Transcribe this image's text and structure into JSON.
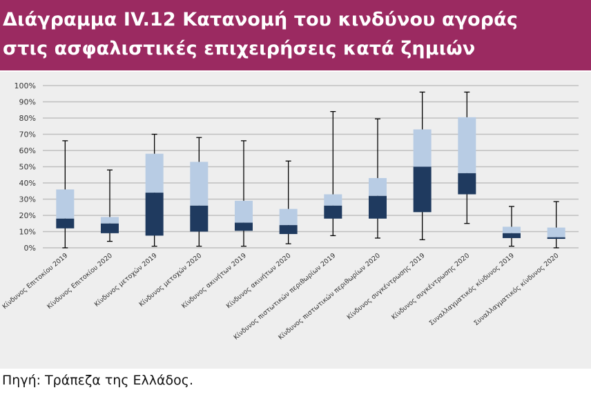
{
  "header": {
    "title_line1": "Διάγραμμα IV.12 Κατανομή του κινδύνου αγοράς",
    "title_line2": "στις ασφαλιστικές επιχειρήσεις κατά ζημιών"
  },
  "footer": {
    "source": "Πηγή: Τράπεζα της Ελλάδος."
  },
  "colors": {
    "header_bg": "#9b2a61",
    "upper_box": "#b8cce4",
    "lower_box": "#1f3a5f",
    "whisker": "#000000",
    "grid": "#bfbfbf",
    "plot_bg": "#eeeeee"
  },
  "chart_data": {
    "type": "box",
    "ylim": [
      0,
      100
    ],
    "y_ticks": [
      "0%",
      "10%",
      "20%",
      "30%",
      "40%",
      "50%",
      "60%",
      "70%",
      "80%",
      "90%",
      "100%"
    ],
    "grid": true,
    "legend": "none",
    "categories": [
      "Κίνδυνος Επιτοκίου 2019",
      "Κίνδυνος Επιτοκίου 2020",
      "Κίνδυνος μετοχών 2019",
      "Κίνδυνος μετοχών 2020",
      "Κίνδυνος ακινήτων 2019",
      "Κίνδυνος ακινήτων 2020",
      "Κίνδυνος πιστωτικών περιθωρίων 2019",
      "Κίνδυνος πιστωτικών περιθωρίων 2020",
      "Κίνδυνος συγκέντρωσης 2019",
      "Κίνδυνος συγκέντρωσης 2020",
      "Συναλλαγματικός κίνδυνος 2019",
      "Συναλλαγματικός κίνδυνος 2020"
    ],
    "boxes": [
      {
        "min": 0,
        "q1": 12,
        "median": 18,
        "q3": 36,
        "max": 66
      },
      {
        "min": 4,
        "q1": 9,
        "median": 15,
        "q3": 19,
        "max": 48
      },
      {
        "min": 1,
        "q1": 7.5,
        "median": 34,
        "q3": 58,
        "max": 70
      },
      {
        "min": 1,
        "q1": 10,
        "median": 26,
        "q3": 53,
        "max": 68
      },
      {
        "min": 1,
        "q1": 10.5,
        "median": 15.5,
        "q3": 29,
        "max": 66
      },
      {
        "min": 2.5,
        "q1": 8.5,
        "median": 14,
        "q3": 24,
        "max": 53.5
      },
      {
        "min": 7.5,
        "q1": 18,
        "median": 26,
        "q3": 33,
        "max": 84
      },
      {
        "min": 6,
        "q1": 18,
        "median": 32,
        "q3": 43,
        "max": 79.5
      },
      {
        "min": 5,
        "q1": 22,
        "median": 50,
        "q3": 73,
        "max": 96
      },
      {
        "min": 15,
        "q1": 33,
        "median": 46,
        "q3": 80.5,
        "max": 96
      },
      {
        "min": 1,
        "q1": 6,
        "median": 9,
        "q3": 13,
        "max": 25.5
      },
      {
        "min": 0,
        "q1": 5.5,
        "median": 6.5,
        "q3": 12.5,
        "max": 28.5
      }
    ]
  }
}
